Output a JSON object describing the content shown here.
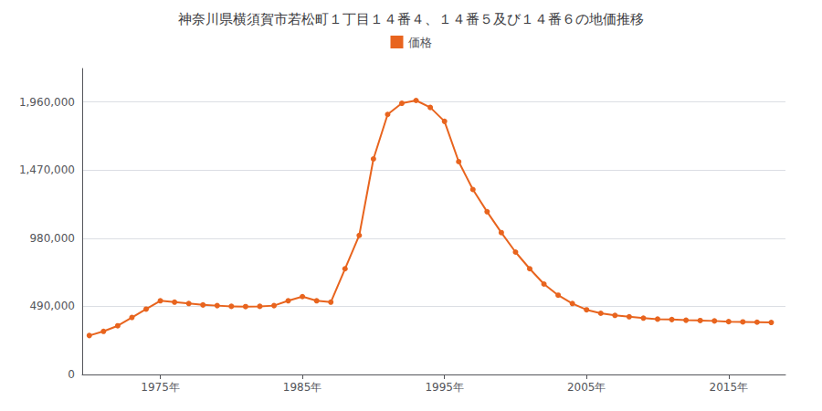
{
  "chart_data": {
    "type": "line",
    "title": "神奈川県横須賀市若松町１丁目１４番４、１４番５及び１４番６の地価推移",
    "x": [
      1970,
      1971,
      1972,
      1973,
      1974,
      1975,
      1976,
      1977,
      1978,
      1979,
      1980,
      1981,
      1982,
      1983,
      1984,
      1985,
      1986,
      1987,
      1988,
      1989,
      1990,
      1991,
      1992,
      1993,
      1994,
      1995,
      1996,
      1997,
      1998,
      1999,
      2000,
      2001,
      2002,
      2003,
      2004,
      2005,
      2006,
      2007,
      2008,
      2009,
      2010,
      2011,
      2012,
      2013,
      2014,
      2015,
      2016,
      2017,
      2018
    ],
    "series": [
      {
        "name": "価格",
        "color": "#e8641e",
        "marker": "circle",
        "values": [
          280000,
          310000,
          350000,
          410000,
          470000,
          530000,
          520000,
          510000,
          500000,
          495000,
          490000,
          488000,
          490000,
          495000,
          530000,
          560000,
          530000,
          520000,
          760000,
          1000000,
          1550000,
          1870000,
          1950000,
          1970000,
          1920000,
          1820000,
          1530000,
          1330000,
          1170000,
          1020000,
          880000,
          760000,
          650000,
          570000,
          510000,
          465000,
          440000,
          425000,
          415000,
          405000,
          398000,
          395000,
          390000,
          388000,
          385000,
          380000,
          378000,
          376000,
          374000
        ]
      }
    ],
    "xlim": [
      1969.5,
      2019
    ],
    "xticks": [
      {
        "value": 1975,
        "label": "1975年"
      },
      {
        "value": 1985,
        "label": "1985年"
      },
      {
        "value": 1995,
        "label": "1995年"
      },
      {
        "value": 2005,
        "label": "2005年"
      },
      {
        "value": 2015,
        "label": "2015年"
      }
    ],
    "ylim": [
      0,
      2200000
    ],
    "yticks": [
      0,
      {
        "value": 490000,
        "label": "490,000"
      },
      {
        "value": 980000,
        "label": "980,000"
      },
      {
        "value": 1470000,
        "label": "1,470,000"
      },
      {
        "value": 1960000,
        "label": "1,960,000"
      }
    ],
    "grid": true,
    "legend": "top"
  }
}
